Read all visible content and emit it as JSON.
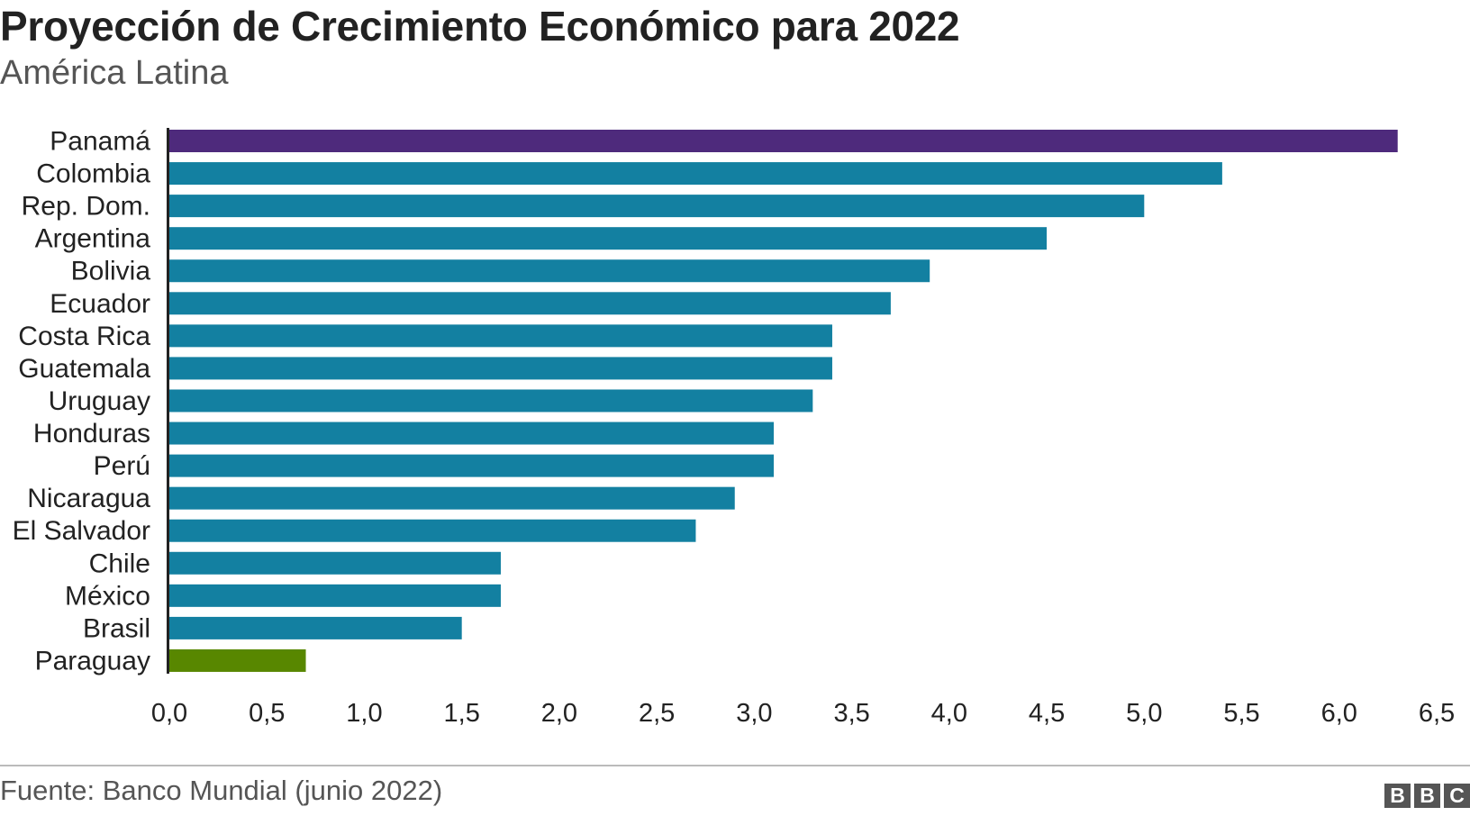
{
  "chart_data": {
    "type": "bar",
    "orientation": "horizontal",
    "title": "Proyección de Crecimiento Económico para 2022",
    "subtitle": "América Latina",
    "categories": [
      "Panamá",
      "Colombia",
      "Rep. Dom.",
      "Argentina",
      "Bolivia",
      "Ecuador",
      "Costa Rica",
      "Guatemala",
      "Uruguay",
      "Honduras",
      "Perú",
      "Nicaragua",
      "El Salvador",
      "Chile",
      "México",
      "Brasil",
      "Paraguay"
    ],
    "values": [
      6.3,
      5.4,
      5.0,
      4.5,
      3.9,
      3.7,
      3.4,
      3.4,
      3.3,
      3.1,
      3.1,
      2.9,
      2.7,
      1.7,
      1.7,
      1.5,
      0.7
    ],
    "highlight_colors": {
      "Panamá": "#4e2a7c",
      "Paraguay": "#588700"
    },
    "bar_color": "#1380a1",
    "xlim": [
      0,
      6.5
    ],
    "xticks": [
      "0,0",
      "0,5",
      "1,0",
      "1,5",
      "2,0",
      "2,5",
      "3,0",
      "3,5",
      "4,0",
      "4,5",
      "5,0",
      "5,5",
      "6,0",
      "6,5"
    ],
    "xlabel": "",
    "ylabel": "",
    "grid": false,
    "legend": "none"
  },
  "footer": {
    "source": "Fuente: Banco Mundial (junio 2022)",
    "logo_letters": [
      "B",
      "B",
      "C"
    ]
  }
}
